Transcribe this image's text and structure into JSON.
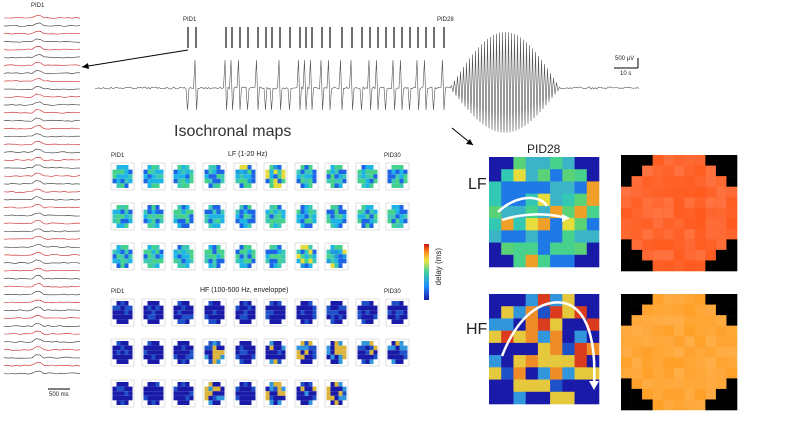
{
  "labels": {
    "pid_left": "PID1",
    "pid1": "PID1",
    "pid28": "PID28",
    "scale_amp": "500 µV",
    "scale_time": "10 s",
    "scale_left": "500 ms",
    "iso_title": "Isochronal maps",
    "lf_band": "LF (1-20 Hz)",
    "hf_band": "HF (100-500 Hz, enveloppe)",
    "lf_pid1": "PID1",
    "lf_pid30": "PID30",
    "hf_pid1": "PID1",
    "hf_pid30": "PID30",
    "colorbar_label": "delay (ms)",
    "pid28_title": "PID28",
    "lf_tag": "LF",
    "hf_tag": "HF"
  },
  "colors": {
    "map_bg": "#1a1aa8",
    "lf_map_base": "#ff5a1e",
    "hf_map_base": "#ffa028",
    "mask": "#000000",
    "trace_red": "#cc2222",
    "trace_black": "#333333",
    "arrow": "#ffffff"
  }
}
